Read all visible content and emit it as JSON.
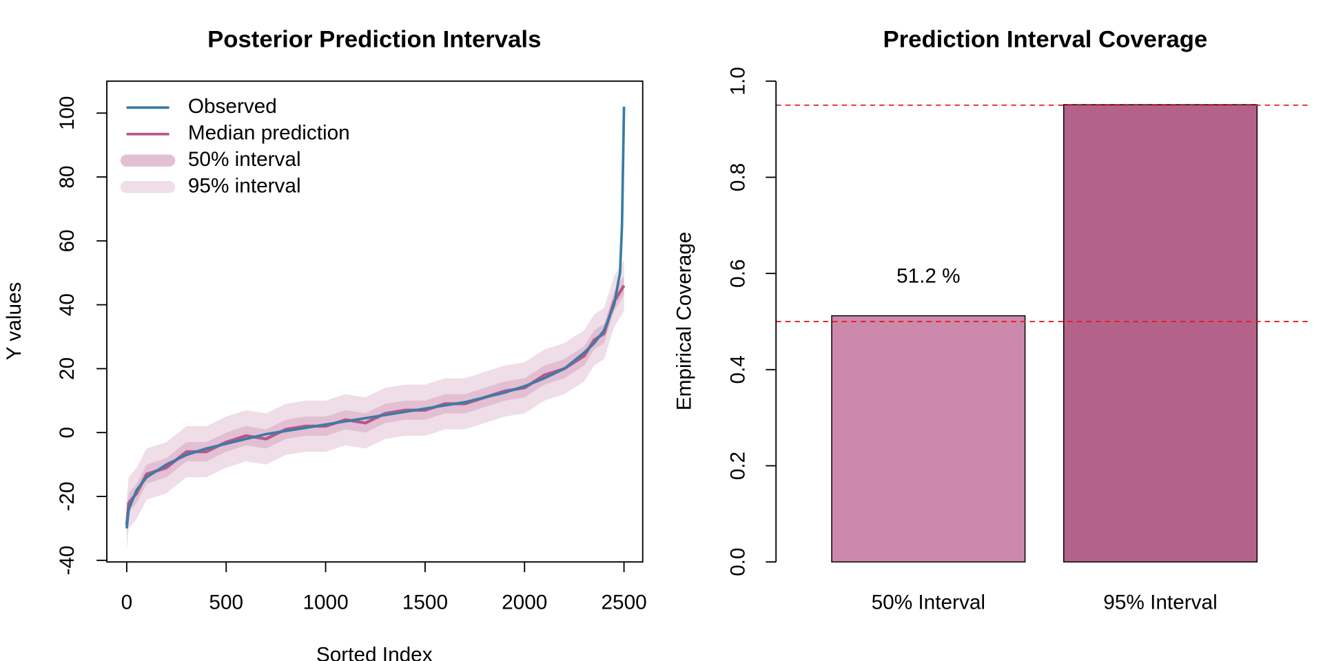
{
  "chart_data": [
    {
      "type": "line",
      "title": "Posterior Prediction Intervals",
      "xlabel": "Sorted Index",
      "ylabel": "Y values",
      "x": [
        0,
        10,
        50,
        100,
        200,
        300,
        400,
        500,
        600,
        700,
        800,
        900,
        1000,
        1100,
        1200,
        1300,
        1400,
        1500,
        1600,
        1700,
        1800,
        1900,
        2000,
        2100,
        2200,
        2300,
        2350,
        2400,
        2450,
        2480,
        2490,
        2500
      ],
      "series": [
        {
          "name": "Observed",
          "color": "#3a7ca5",
          "values": [
            -30,
            -24,
            -18,
            -14,
            -10,
            -7,
            -5,
            -3.5,
            -2,
            -0.5,
            0.5,
            1.5,
            2.5,
            3.5,
            4.5,
            5.5,
            6.5,
            7.5,
            8.5,
            9.5,
            11,
            12.5,
            14.5,
            17,
            20,
            25,
            28,
            32,
            40,
            50,
            65,
            102
          ]
        },
        {
          "name": "Median prediction",
          "color": "#b5578a",
          "values": [
            -29,
            -22,
            -19,
            -13,
            -11,
            -6,
            -6,
            -3,
            -1,
            -2,
            1,
            2,
            2,
            4,
            3,
            6,
            7,
            7,
            9,
            9,
            11,
            13,
            14,
            18,
            20,
            24,
            29,
            31,
            41,
            44,
            45,
            46
          ]
        }
      ],
      "bands": [
        {
          "name": "50% interval",
          "color": "#e2bfd2",
          "lower": [
            -32,
            -25,
            -22,
            -16,
            -14,
            -9,
            -9,
            -6,
            -4,
            -5,
            -2,
            -1,
            -1,
            1,
            0,
            3,
            4,
            4,
            6,
            6,
            8,
            10,
            11,
            15,
            17,
            21,
            26,
            28,
            38,
            41,
            42,
            43
          ],
          "upper": [
            -26,
            -19,
            -16,
            -10,
            -8,
            -3,
            -3,
            0,
            2,
            1,
            4,
            5,
            5,
            7,
            6,
            9,
            10,
            10,
            12,
            12,
            14,
            16,
            17,
            21,
            23,
            27,
            32,
            34,
            44,
            47,
            48,
            49
          ]
        },
        {
          "name": "95% interval",
          "color": "#efdde7",
          "lower": [
            -37,
            -30,
            -27,
            -21,
            -19,
            -14,
            -14,
            -11,
            -9,
            -10,
            -7,
            -6,
            -6,
            -4,
            -5,
            -2,
            -1,
            -1,
            1,
            1,
            3,
            5,
            6,
            10,
            12,
            16,
            21,
            23,
            33,
            36,
            37,
            38
          ],
          "upper": [
            -21,
            -14,
            -11,
            -5,
            -3,
            2,
            2,
            5,
            7,
            6,
            9,
            10,
            10,
            12,
            11,
            14,
            15,
            15,
            17,
            17,
            19,
            21,
            22,
            26,
            28,
            32,
            37,
            39,
            49,
            52,
            53,
            54
          ]
        }
      ],
      "xlim": [
        -100,
        2594
      ],
      "ylim": [
        -40.5,
        110
      ],
      "xticks": [
        0,
        500,
        1000,
        1500,
        2000,
        2500
      ],
      "yticks": [
        -40,
        -20,
        0,
        20,
        40,
        60,
        80,
        100
      ],
      "legend": "topleft"
    },
    {
      "type": "bar",
      "title": "Prediction Interval Coverage",
      "ylabel": "Empirical Coverage",
      "categories": [
        "50% Interval",
        "95% Interval"
      ],
      "values": [
        0.512,
        0.951
      ],
      "value_labels": [
        "51.2 %",
        null
      ],
      "colors": [
        "#cc89ab",
        "#b5628b"
      ],
      "ylim": [
        0,
        1
      ],
      "yticks": [
        {
          "value": 0,
          "label": "0.0"
        },
        0.2,
        0.4,
        0.6,
        0.8,
        {
          "value": 1,
          "label": "1.0"
        }
      ],
      "reference_lines": {
        "values": [
          0.5,
          0.95
        ],
        "color": "#e41a1c"
      }
    }
  ]
}
